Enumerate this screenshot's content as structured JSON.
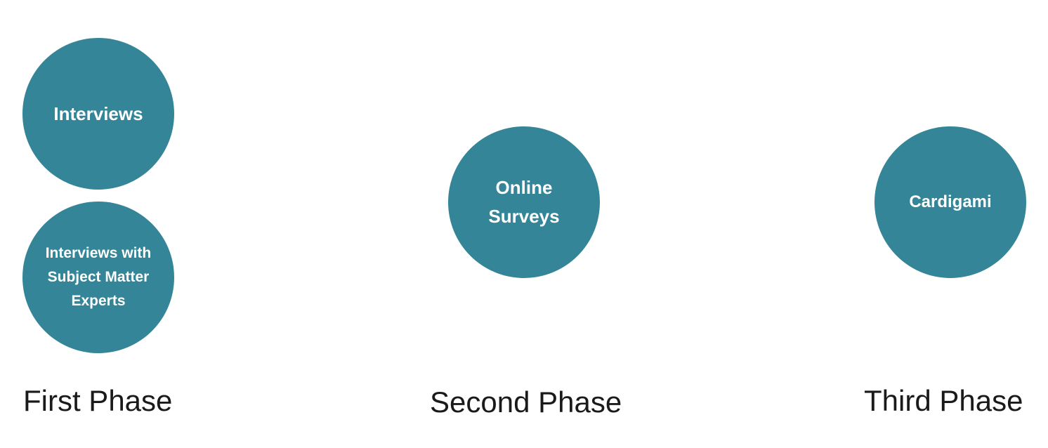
{
  "colors": {
    "circle_fill": "#348598",
    "circle_text": "#ffffff",
    "label_text": "#1a1a1a",
    "background": "#ffffff"
  },
  "phases": [
    {
      "label": "First Phase",
      "methods": [
        "Interviews",
        "Interviews with Subject Matter Experts"
      ]
    },
    {
      "label": "Second Phase",
      "methods": [
        "Online Surveys"
      ]
    },
    {
      "label": "Third Phase",
      "methods": [
        "Cardigami"
      ]
    }
  ]
}
